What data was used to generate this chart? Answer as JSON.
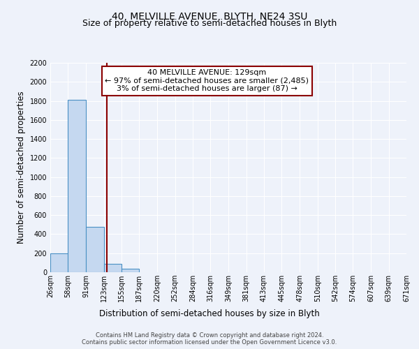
{
  "title": "40, MELVILLE AVENUE, BLYTH, NE24 3SU",
  "subtitle": "Size of property relative to semi-detached houses in Blyth",
  "xlabel": "Distribution of semi-detached houses by size in Blyth",
  "ylabel": "Number of semi-detached properties",
  "bin_edges": [
    26,
    58,
    91,
    123,
    155,
    187,
    220,
    252,
    284,
    316,
    349,
    381,
    413,
    445,
    478,
    510,
    542,
    574,
    607,
    639,
    671
  ],
  "bin_counts": [
    196,
    1810,
    479,
    87,
    35,
    0,
    0,
    0,
    0,
    0,
    0,
    0,
    0,
    0,
    0,
    0,
    0,
    0,
    0,
    0
  ],
  "bar_color": "#c5d8f0",
  "bar_edge_color": "#4a90c4",
  "property_size": 129,
  "vline_color": "#8b0000",
  "ylim": [
    0,
    2200
  ],
  "yticks": [
    0,
    200,
    400,
    600,
    800,
    1000,
    1200,
    1400,
    1600,
    1800,
    2000,
    2200
  ],
  "annotation_box_text_line1": "40 MELVILLE AVENUE: 129sqm",
  "annotation_box_text_line2": "← 97% of semi-detached houses are smaller (2,485)",
  "annotation_box_text_line3": "3% of semi-detached houses are larger (87) →",
  "annotation_box_edge_color": "#8b0000",
  "annotation_box_face_color": "#ffffff",
  "footer_line1": "Contains HM Land Registry data © Crown copyright and database right 2024.",
  "footer_line2": "Contains public sector information licensed under the Open Government Licence v3.0.",
  "background_color": "#eef2fa",
  "grid_color": "#ffffff",
  "title_fontsize": 10,
  "subtitle_fontsize": 9,
  "axis_label_fontsize": 8.5,
  "tick_label_fontsize": 7,
  "footer_fontsize": 6,
  "ann_fontsize": 8
}
